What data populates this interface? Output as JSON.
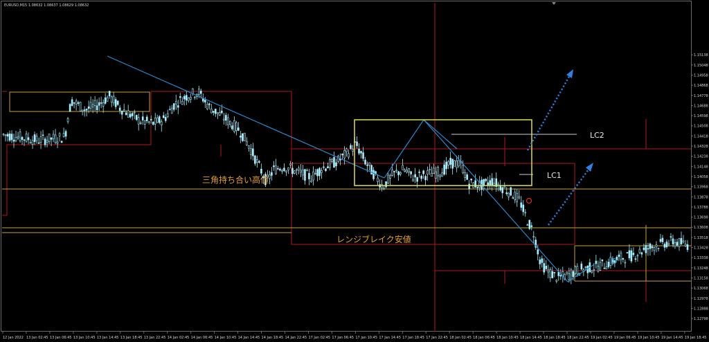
{
  "header": {
    "symbol_info": "EURUSD,M15  1.08632 1.08637 1.08629 1.08632"
  },
  "chart_data": {
    "type": "candlestick",
    "title": "",
    "y_range": [
      1.127,
      1.156
    ],
    "y_ticks": [
      "1.15138",
      "1.15048",
      "1.14958",
      "1.14868",
      "1.14778",
      "1.14688",
      "1.14598",
      "1.14508",
      "1.14418",
      "1.14328",
      "1.14238",
      "1.14148",
      "1.14058",
      "1.13968",
      "1.13878",
      "1.13788",
      "1.13698",
      "1.13608",
      "1.13518",
      "1.13428",
      "1.13338",
      "1.13248",
      "1.13158",
      "1.13068",
      "1.12978",
      "1.12888",
      "1.12798"
    ],
    "x_ticks": [
      "12 Jan 2022",
      "13 Jan 02:45",
      "13 Jan 06:45",
      "13 Jan 10:45",
      "13 Jan 14:45",
      "13 Jan 18:45",
      "13 Jan 22:45",
      "14 Jan 02:45",
      "14 Jan 06:45",
      "14 Jan 10:45",
      "14 Jan 14:45",
      "14 Jan 18:45",
      "14 Jan 22:45",
      "17 Jan 02:45",
      "17 Jan 06:45",
      "17 Jan 10:45",
      "17 Jan 14:45",
      "17 Jan 18:45",
      "17 Jan 22:45",
      "18 Jan 02:45",
      "18 Jan 06:45",
      "18 Jan 10:45",
      "18 Jan 14:45",
      "18 Jan 18:45",
      "18 Jan 22:45",
      "19 Jan 02:45",
      "19 Jan 06:45",
      "19 Jan 10:45",
      "19 Jan 14:45",
      "19 Jan 18:45"
    ],
    "price_path": [
      [
        0,
        1.1443
      ],
      [
        0.02,
        1.1441
      ],
      [
        0.05,
        1.1438
      ],
      [
        0.08,
        1.144
      ],
      [
        0.09,
        1.1441
      ],
      [
        0.095,
        1.1462
      ],
      [
        0.1,
        1.1473
      ],
      [
        0.12,
        1.1465
      ],
      [
        0.14,
        1.147
      ],
      [
        0.155,
        1.1477
      ],
      [
        0.17,
        1.1467
      ],
      [
        0.2,
        1.1455
      ],
      [
        0.22,
        1.1453
      ],
      [
        0.235,
        1.1457
      ],
      [
        0.25,
        1.147
      ],
      [
        0.27,
        1.1478
      ],
      [
        0.285,
        1.1481
      ],
      [
        0.3,
        1.1468
      ],
      [
        0.32,
        1.1459
      ],
      [
        0.345,
        1.1447
      ],
      [
        0.36,
        1.1432
      ],
      [
        0.375,
        1.1413
      ],
      [
        0.385,
        1.1401
      ],
      [
        0.395,
        1.1412
      ],
      [
        0.41,
        1.1415
      ],
      [
        0.43,
        1.141
      ],
      [
        0.45,
        1.1405
      ],
      [
        0.465,
        1.1413
      ],
      [
        0.49,
        1.142
      ],
      [
        0.505,
        1.1428
      ],
      [
        0.515,
        1.1435
      ],
      [
        0.53,
        1.1418
      ],
      [
        0.545,
        1.1405
      ],
      [
        0.555,
        1.1397
      ],
      [
        0.57,
        1.1408
      ],
      [
        0.585,
        1.1412
      ],
      [
        0.6,
        1.1405
      ],
      [
        0.62,
        1.1408
      ],
      [
        0.64,
        1.141
      ],
      [
        0.655,
        1.1418
      ],
      [
        0.67,
        1.1416
      ],
      [
        0.68,
        1.14
      ],
      [
        0.7,
        1.1398
      ],
      [
        0.715,
        1.1402
      ],
      [
        0.73,
        1.1396
      ],
      [
        0.745,
        1.139
      ],
      [
        0.755,
        1.1384
      ],
      [
        0.765,
        1.1368
      ],
      [
        0.775,
        1.1356
      ],
      [
        0.785,
        1.133
      ],
      [
        0.795,
        1.1322
      ],
      [
        0.81,
        1.1316
      ],
      [
        0.825,
        1.1318
      ],
      [
        0.84,
        1.1323
      ],
      [
        0.86,
        1.1325
      ],
      [
        0.88,
        1.1328
      ],
      [
        0.9,
        1.1333
      ],
      [
        0.92,
        1.1336
      ],
      [
        0.94,
        1.1342
      ],
      [
        0.96,
        1.1346
      ],
      [
        0.98,
        1.1348
      ],
      [
        1.0,
        1.1345
      ]
    ],
    "annotations": {
      "triangle_high": "三角持ち合い高値",
      "range_break_low": "レンジブレイク安値",
      "lc1": "LC1",
      "lc2": "LC2"
    },
    "colors": {
      "background": "#000000",
      "candle": "#a8f0ff",
      "triangle_line": "#2a8bd0",
      "range_box": "#e0e050",
      "red_lines": "#b01818",
      "orange_lines": "#c8a040",
      "label_orange": "#e4a030",
      "arrow_dotted": "#2f80e0",
      "lc_lines": "#d0d0d0"
    }
  }
}
